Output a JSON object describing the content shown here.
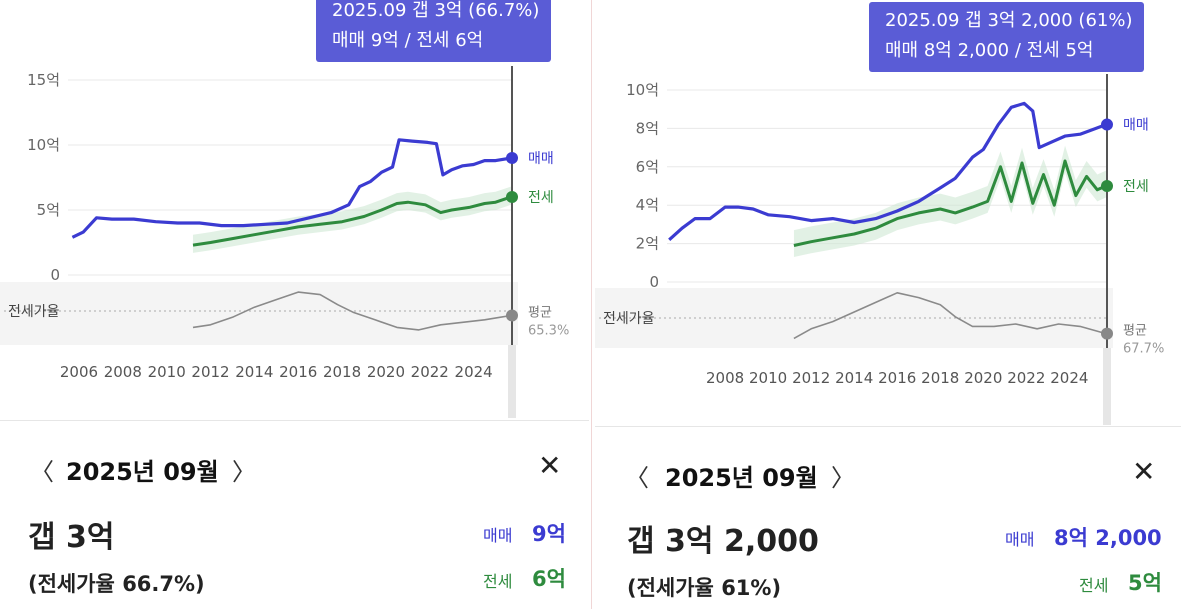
{
  "panels": [
    {
      "tooltip": {
        "line1": "2025.09  갭 3억 (66.7%)",
        "line2": "매매 9억 / 전세 6억"
      },
      "y_tick_labels": [
        "15억",
        "10억",
        "5억",
        "0"
      ],
      "x_tick_labels": [
        "2006",
        "2008",
        "2010",
        "2012",
        "2014",
        "2016",
        "2018",
        "2020",
        "2022",
        "2024"
      ],
      "ratio_axis_label": "전세가율",
      "end_labels": {
        "sale": "매매",
        "lease": "전세",
        "avg": "평균",
        "avg_value": "65.3%"
      },
      "detail": {
        "prev_icon": "chevron-left-icon",
        "next_icon": "chevron-right-icon",
        "close_icon": "close-icon",
        "date": "2025년 09월",
        "gap": "갭 3억",
        "ratio_text": "(전세가율 66.7%)",
        "sale_label": "매매",
        "sale_value": "9억",
        "lease_label": "전세",
        "lease_value": "6억"
      }
    },
    {
      "tooltip": {
        "line1": "2025.09  갭 3억 2,000 (61%)",
        "line2": "매매 8억 2,000 / 전세 5억"
      },
      "y_tick_labels": [
        "10억",
        "8억",
        "6억",
        "4억",
        "2억",
        "0"
      ],
      "x_tick_labels": [
        "2008",
        "2010",
        "2012",
        "2014",
        "2016",
        "2018",
        "2020",
        "2022",
        "2024"
      ],
      "ratio_axis_label": "전세가율",
      "end_labels": {
        "sale": "매매",
        "lease": "전세",
        "avg": "평균",
        "avg_value": "67.7%"
      },
      "detail": {
        "prev_icon": "chevron-left-icon",
        "next_icon": "chevron-right-icon",
        "close_icon": "close-icon",
        "date": "2025년 09월",
        "gap": "갭 3억 2,000",
        "ratio_text": "(전세가율 61%)",
        "sale_label": "매매",
        "sale_value": "8억 2,000",
        "lease_label": "전세",
        "lease_value": "5억"
      }
    }
  ],
  "colors": {
    "sale": "#3b3bd1",
    "lease": "#2e8b3e",
    "lease_band": "#cfe8d3",
    "ratio": "#8a8a8a",
    "tooltip_bg": "#5a5cd6",
    "grid": "#e8e8e8"
  },
  "chart_data": [
    {
      "type": "line",
      "ylim": [
        0,
        15
      ],
      "xlim": [
        2005.5,
        2025.75
      ],
      "x_ticks": [
        2006,
        2008,
        2010,
        2012,
        2014,
        2016,
        2018,
        2020,
        2022,
        2024
      ],
      "y_ticks": [
        0,
        5,
        10,
        15
      ],
      "series": [
        {
          "name": "매매",
          "x": [
            2005.7,
            2006.2,
            2006.8,
            2007.5,
            2008.5,
            2009.5,
            2010.5,
            2011.5,
            2012.5,
            2013.5,
            2014.5,
            2015.5,
            2016.5,
            2017.5,
            2018.3,
            2018.8,
            2019.3,
            2019.8,
            2020.3,
            2020.6,
            2021.2,
            2021.9,
            2022.3,
            2022.6,
            2023.0,
            2023.5,
            2024.0,
            2024.5,
            2025.0,
            2025.7
          ],
          "values": [
            2.9,
            3.3,
            4.4,
            4.3,
            4.3,
            4.1,
            4.0,
            4.0,
            3.8,
            3.8,
            3.9,
            4.0,
            4.4,
            4.8,
            5.4,
            6.8,
            7.2,
            7.9,
            8.3,
            10.4,
            10.3,
            10.2,
            10.1,
            7.7,
            8.1,
            8.4,
            8.5,
            8.8,
            8.8,
            9.0
          ]
        },
        {
          "name": "전세",
          "x": [
            2011.2,
            2012.0,
            2013.0,
            2014.0,
            2015.0,
            2016.0,
            2017.0,
            2018.0,
            2019.0,
            2019.8,
            2020.5,
            2021.0,
            2021.8,
            2022.5,
            2023.0,
            2023.8,
            2024.5,
            2025.0,
            2025.7
          ],
          "values": [
            2.3,
            2.5,
            2.8,
            3.1,
            3.4,
            3.7,
            3.9,
            4.1,
            4.5,
            5.0,
            5.5,
            5.6,
            5.4,
            4.8,
            5.0,
            5.2,
            5.5,
            5.6,
            6.0
          ]
        },
        {
          "name": "전세가율",
          "x": [
            2011.2,
            2012.0,
            2013.0,
            2014.0,
            2015.0,
            2016.0,
            2017.0,
            2017.8,
            2018.5,
            2019.5,
            2020.5,
            2021.5,
            2022.5,
            2023.5,
            2024.5,
            2025.7
          ],
          "values": [
            62,
            63,
            66,
            70,
            73,
            76,
            75,
            71,
            68,
            65,
            62,
            61,
            63,
            64,
            65,
            66.7
          ]
        }
      ],
      "ratio_average": 65.3
    },
    {
      "type": "line",
      "ylim": [
        0,
        10
      ],
      "xlim": [
        2005.3,
        2025.75
      ],
      "x_ticks": [
        2008,
        2010,
        2012,
        2014,
        2016,
        2018,
        2020,
        2022,
        2024
      ],
      "y_ticks": [
        0,
        2,
        4,
        6,
        8,
        10
      ],
      "series": [
        {
          "name": "매매",
          "x": [
            2005.4,
            2006.0,
            2006.6,
            2007.3,
            2008.0,
            2008.6,
            2009.3,
            2010.0,
            2011.0,
            2012.0,
            2013.0,
            2014.0,
            2015.0,
            2016.0,
            2017.0,
            2018.0,
            2018.7,
            2019.5,
            2020.0,
            2020.7,
            2021.3,
            2021.9,
            2022.3,
            2022.6,
            2023.2,
            2023.8,
            2024.5,
            2025.0,
            2025.7
          ],
          "values": [
            2.2,
            2.8,
            3.3,
            3.3,
            3.9,
            3.9,
            3.8,
            3.5,
            3.4,
            3.2,
            3.3,
            3.1,
            3.3,
            3.7,
            4.2,
            4.9,
            5.4,
            6.5,
            6.9,
            8.2,
            9.1,
            9.3,
            8.9,
            7.0,
            7.3,
            7.6,
            7.7,
            7.9,
            8.2
          ]
        },
        {
          "name": "전세",
          "x": [
            2011.2,
            2012.0,
            2013.0,
            2014.0,
            2015.0,
            2016.0,
            2017.0,
            2018.0,
            2018.7,
            2019.5,
            2020.2,
            2020.8,
            2021.3,
            2021.8,
            2022.3,
            2022.8,
            2023.3,
            2023.8,
            2024.3,
            2024.8,
            2025.3,
            2025.7
          ],
          "values": [
            1.9,
            2.1,
            2.3,
            2.5,
            2.8,
            3.3,
            3.6,
            3.8,
            3.6,
            3.9,
            4.2,
            6.0,
            4.2,
            6.2,
            4.1,
            5.6,
            4.0,
            6.3,
            4.5,
            5.5,
            4.8,
            5.0
          ]
        },
        {
          "name": "전세가율",
          "x": [
            2011.2,
            2012.0,
            2013.0,
            2014.0,
            2015.0,
            2016.0,
            2017.0,
            2018.0,
            2018.7,
            2019.5,
            2020.5,
            2021.5,
            2022.5,
            2023.5,
            2024.5,
            2025.7
          ],
          "values": [
            59,
            63,
            66,
            70,
            74,
            78,
            76,
            73,
            68,
            64,
            64,
            65,
            63,
            65,
            64,
            61
          ]
        }
      ],
      "ratio_average": 67.7
    }
  ]
}
